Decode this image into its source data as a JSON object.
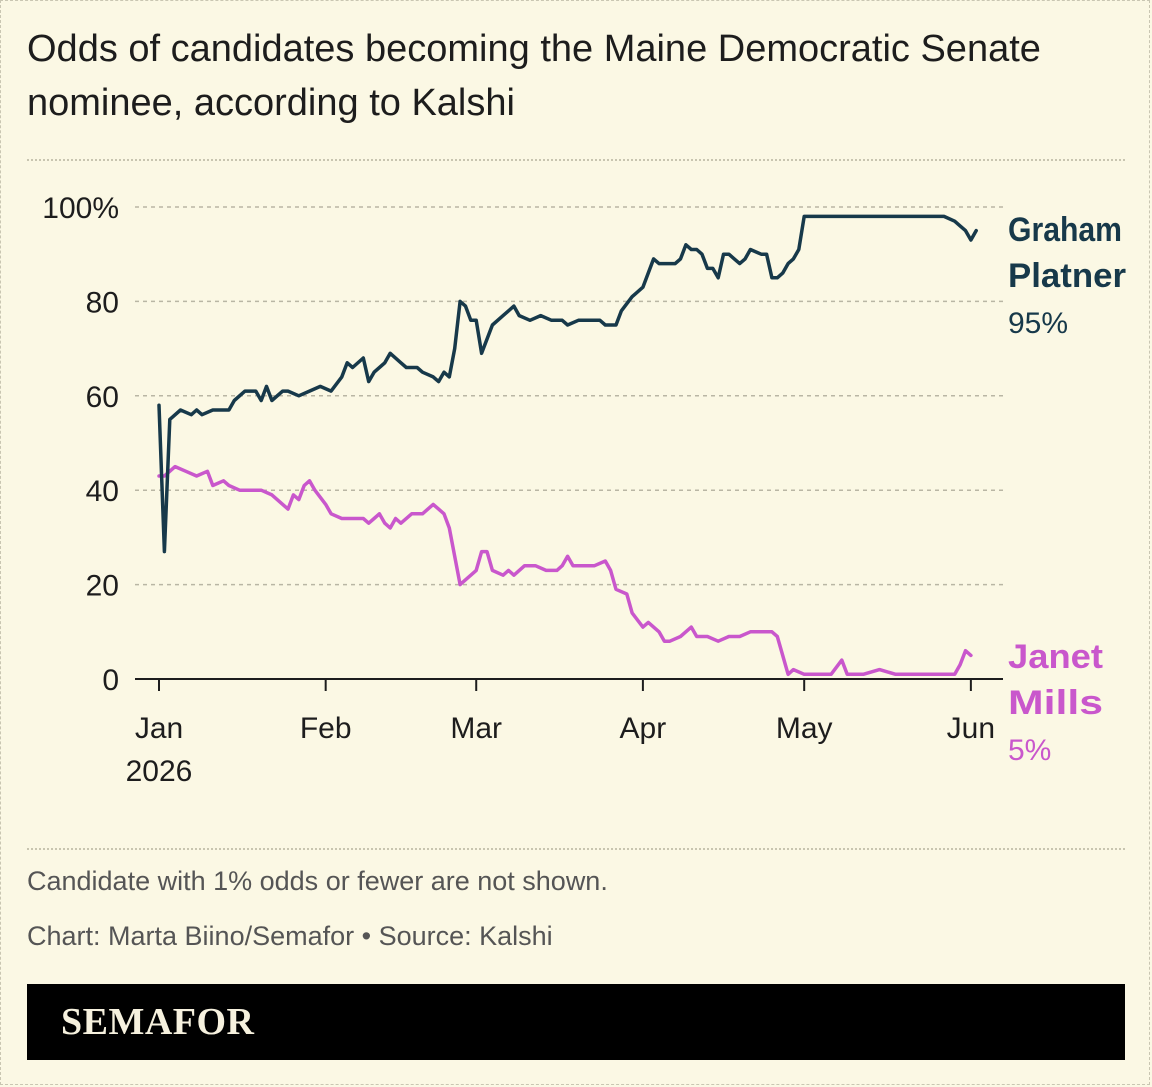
{
  "title": "Odds of candidates becoming the Maine Democratic Senate nominee, according to Kalshi",
  "note": "Candidate with 1% odds or fewer are not shown.",
  "credit": "Chart: Marta Biino/Semafor • Source: Kalshi",
  "logo": "SEMAFOR",
  "colors": {
    "background": "#fbf8e4",
    "platner": "#17394a",
    "mills": "#c957cc",
    "footer": "#000000"
  },
  "chart_data": {
    "type": "line",
    "title": "Odds of candidates becoming the Maine Democratic Senate nominee, according to Kalshi",
    "xlabel": "",
    "ylabel": "",
    "ylim": [
      0,
      100
    ],
    "xlim": [
      "2026-01-01",
      "2026-06-04"
    ],
    "y_ticks": [
      {
        "value": 100,
        "label": "100%"
      },
      {
        "value": 80,
        "label": "80"
      },
      {
        "value": 60,
        "label": "60"
      },
      {
        "value": 40,
        "label": "40"
      },
      {
        "value": 20,
        "label": "20"
      },
      {
        "value": 0,
        "label": "0"
      }
    ],
    "x_ticks": [
      {
        "date": "2026-01-01",
        "label": "Jan",
        "sublabel": "2026"
      },
      {
        "date": "2026-02-01",
        "label": "Feb"
      },
      {
        "date": "2026-03-01",
        "label": "Mar"
      },
      {
        "date": "2026-04-01",
        "label": "Apr"
      },
      {
        "date": "2026-05-01",
        "label": "May"
      },
      {
        "date": "2026-06-01",
        "label": "Jun"
      }
    ],
    "grid": true,
    "legend": "direct labels at right end of lines",
    "series": [
      {
        "name": "Graham Platner",
        "label_lines": [
          "Graham",
          "Platner"
        ],
        "end_label": "95%",
        "color": "#17394a",
        "points": [
          [
            "2026-01-01",
            58
          ],
          [
            "2026-01-02",
            27
          ],
          [
            "2026-01-03",
            55
          ],
          [
            "2026-01-05",
            57
          ],
          [
            "2026-01-07",
            56
          ],
          [
            "2026-01-08",
            57
          ],
          [
            "2026-01-09",
            56
          ],
          [
            "2026-01-11",
            57
          ],
          [
            "2026-01-14",
            57
          ],
          [
            "2026-01-15",
            59
          ],
          [
            "2026-01-17",
            61
          ],
          [
            "2026-01-19",
            61
          ],
          [
            "2026-01-20",
            59
          ],
          [
            "2026-01-21",
            62
          ],
          [
            "2026-01-22",
            59
          ],
          [
            "2026-01-24",
            61
          ],
          [
            "2026-01-25",
            61
          ],
          [
            "2026-01-27",
            60
          ],
          [
            "2026-01-29",
            61
          ],
          [
            "2026-01-31",
            62
          ],
          [
            "2026-02-02",
            61
          ],
          [
            "2026-02-04",
            64
          ],
          [
            "2026-02-05",
            67
          ],
          [
            "2026-02-06",
            66
          ],
          [
            "2026-02-08",
            68
          ],
          [
            "2026-02-09",
            63
          ],
          [
            "2026-02-10",
            65
          ],
          [
            "2026-02-12",
            67
          ],
          [
            "2026-02-13",
            69
          ],
          [
            "2026-02-15",
            67
          ],
          [
            "2026-02-16",
            66
          ],
          [
            "2026-02-18",
            66
          ],
          [
            "2026-02-19",
            65
          ],
          [
            "2026-02-21",
            64
          ],
          [
            "2026-02-22",
            63
          ],
          [
            "2026-02-23",
            65
          ],
          [
            "2026-02-24",
            64
          ],
          [
            "2026-02-25",
            70
          ],
          [
            "2026-02-26",
            80
          ],
          [
            "2026-02-27",
            79
          ],
          [
            "2026-02-28",
            76
          ],
          [
            "2026-03-01",
            76
          ],
          [
            "2026-03-02",
            69
          ],
          [
            "2026-03-04",
            75
          ],
          [
            "2026-03-06",
            77
          ],
          [
            "2026-03-08",
            79
          ],
          [
            "2026-03-09",
            77
          ],
          [
            "2026-03-11",
            76
          ],
          [
            "2026-03-13",
            77
          ],
          [
            "2026-03-15",
            76
          ],
          [
            "2026-03-17",
            76
          ],
          [
            "2026-03-18",
            75
          ],
          [
            "2026-03-20",
            76
          ],
          [
            "2026-03-22",
            76
          ],
          [
            "2026-03-24",
            76
          ],
          [
            "2026-03-25",
            75
          ],
          [
            "2026-03-27",
            75
          ],
          [
            "2026-03-28",
            78
          ],
          [
            "2026-03-30",
            81
          ],
          [
            "2026-04-01",
            83
          ],
          [
            "2026-04-03",
            89
          ],
          [
            "2026-04-04",
            88
          ],
          [
            "2026-04-05",
            88
          ],
          [
            "2026-04-07",
            88
          ],
          [
            "2026-04-08",
            89
          ],
          [
            "2026-04-09",
            92
          ],
          [
            "2026-04-10",
            91
          ],
          [
            "2026-04-11",
            91
          ],
          [
            "2026-04-12",
            90
          ],
          [
            "2026-04-13",
            87
          ],
          [
            "2026-04-14",
            87
          ],
          [
            "2026-04-15",
            85
          ],
          [
            "2026-04-16",
            90
          ],
          [
            "2026-04-17",
            90
          ],
          [
            "2026-04-18",
            89
          ],
          [
            "2026-04-19",
            88
          ],
          [
            "2026-04-20",
            89
          ],
          [
            "2026-04-21",
            91
          ],
          [
            "2026-04-23",
            90
          ],
          [
            "2026-04-24",
            90
          ],
          [
            "2026-04-25",
            85
          ],
          [
            "2026-04-26",
            85
          ],
          [
            "2026-04-27",
            86
          ],
          [
            "2026-04-28",
            88
          ],
          [
            "2026-04-29",
            89
          ],
          [
            "2026-04-30",
            91
          ],
          [
            "2026-05-01",
            98
          ],
          [
            "2026-05-05",
            98
          ],
          [
            "2026-05-08",
            98
          ],
          [
            "2026-05-10",
            98
          ],
          [
            "2026-05-13",
            98
          ],
          [
            "2026-05-17",
            98
          ],
          [
            "2026-05-20",
            98
          ],
          [
            "2026-05-24",
            98
          ],
          [
            "2026-05-27",
            98
          ],
          [
            "2026-05-29",
            97
          ],
          [
            "2026-05-30",
            96
          ],
          [
            "2026-05-31",
            95
          ],
          [
            "2026-06-01",
            93
          ],
          [
            "2026-06-02",
            95
          ]
        ]
      },
      {
        "name": "Janet Mills",
        "label_lines": [
          "Janet",
          "Mills"
        ],
        "end_label": "5%",
        "color": "#c957cc",
        "points": [
          [
            "2026-01-01",
            43
          ],
          [
            "2026-01-02",
            43
          ],
          [
            "2026-01-04",
            45
          ],
          [
            "2026-01-06",
            44
          ],
          [
            "2026-01-08",
            43
          ],
          [
            "2026-01-10",
            44
          ],
          [
            "2026-01-11",
            41
          ],
          [
            "2026-01-13",
            42
          ],
          [
            "2026-01-14",
            41
          ],
          [
            "2026-01-16",
            40
          ],
          [
            "2026-01-18",
            40
          ],
          [
            "2026-01-20",
            40
          ],
          [
            "2026-01-22",
            39
          ],
          [
            "2026-01-24",
            37
          ],
          [
            "2026-01-25",
            36
          ],
          [
            "2026-01-26",
            39
          ],
          [
            "2026-01-27",
            38
          ],
          [
            "2026-01-28",
            41
          ],
          [
            "2026-01-29",
            42
          ],
          [
            "2026-01-30",
            40
          ],
          [
            "2026-02-01",
            37
          ],
          [
            "2026-02-02",
            35
          ],
          [
            "2026-02-04",
            34
          ],
          [
            "2026-02-06",
            34
          ],
          [
            "2026-02-08",
            34
          ],
          [
            "2026-02-09",
            33
          ],
          [
            "2026-02-10",
            34
          ],
          [
            "2026-02-11",
            35
          ],
          [
            "2026-02-12",
            33
          ],
          [
            "2026-02-13",
            32
          ],
          [
            "2026-02-14",
            34
          ],
          [
            "2026-02-15",
            33
          ],
          [
            "2026-02-17",
            35
          ],
          [
            "2026-02-19",
            35
          ],
          [
            "2026-02-21",
            37
          ],
          [
            "2026-02-22",
            36
          ],
          [
            "2026-02-23",
            35
          ],
          [
            "2026-02-24",
            32
          ],
          [
            "2026-02-26",
            20
          ],
          [
            "2026-02-28",
            22
          ],
          [
            "2026-03-01",
            23
          ],
          [
            "2026-03-02",
            27
          ],
          [
            "2026-03-03",
            27
          ],
          [
            "2026-03-04",
            23
          ],
          [
            "2026-03-06",
            22
          ],
          [
            "2026-03-07",
            23
          ],
          [
            "2026-03-08",
            22
          ],
          [
            "2026-03-10",
            24
          ],
          [
            "2026-03-12",
            24
          ],
          [
            "2026-03-14",
            23
          ],
          [
            "2026-03-16",
            23
          ],
          [
            "2026-03-17",
            24
          ],
          [
            "2026-03-18",
            26
          ],
          [
            "2026-03-19",
            24
          ],
          [
            "2026-03-21",
            24
          ],
          [
            "2026-03-23",
            24
          ],
          [
            "2026-03-25",
            25
          ],
          [
            "2026-03-26",
            23
          ],
          [
            "2026-03-27",
            19
          ],
          [
            "2026-03-29",
            18
          ],
          [
            "2026-03-30",
            14
          ],
          [
            "2026-04-01",
            11
          ],
          [
            "2026-04-02",
            12
          ],
          [
            "2026-04-04",
            10
          ],
          [
            "2026-04-05",
            8
          ],
          [
            "2026-04-06",
            8
          ],
          [
            "2026-04-08",
            9
          ],
          [
            "2026-04-10",
            11
          ],
          [
            "2026-04-11",
            9
          ],
          [
            "2026-04-13",
            9
          ],
          [
            "2026-04-15",
            8
          ],
          [
            "2026-04-17",
            9
          ],
          [
            "2026-04-19",
            9
          ],
          [
            "2026-04-21",
            10
          ],
          [
            "2026-04-23",
            10
          ],
          [
            "2026-04-25",
            10
          ],
          [
            "2026-04-26",
            9
          ],
          [
            "2026-04-27",
            5
          ],
          [
            "2026-04-28",
            1
          ],
          [
            "2026-04-29",
            2
          ],
          [
            "2026-05-01",
            1
          ],
          [
            "2026-05-03",
            1
          ],
          [
            "2026-05-06",
            1
          ],
          [
            "2026-05-08",
            4
          ],
          [
            "2026-05-09",
            1
          ],
          [
            "2026-05-12",
            1
          ],
          [
            "2026-05-15",
            2
          ],
          [
            "2026-05-18",
            1
          ],
          [
            "2026-05-21",
            1
          ],
          [
            "2026-05-24",
            1
          ],
          [
            "2026-05-27",
            1
          ],
          [
            "2026-05-29",
            1
          ],
          [
            "2026-05-30",
            3
          ],
          [
            "2026-05-31",
            6
          ],
          [
            "2026-06-01",
            5
          ]
        ]
      }
    ]
  }
}
